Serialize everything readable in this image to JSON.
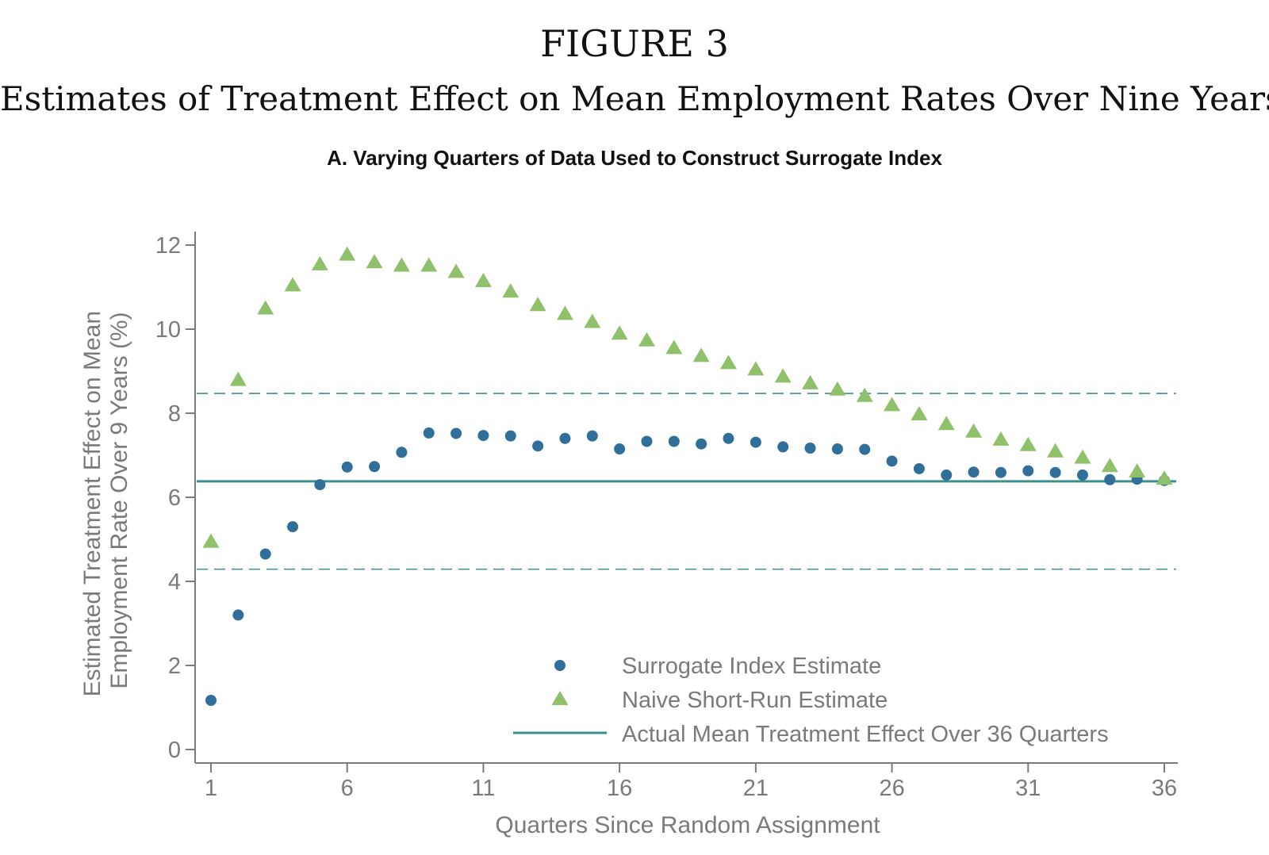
{
  "figure_label": "FIGURE 3",
  "figure_title": "Estimates of Treatment Effect on Mean Employment Rates Over Nine Years",
  "panel_title": "A. Varying Quarters of Data Used to Construct Surrogate Index",
  "colors": {
    "surrogate": "#2f6f9a",
    "naive": "#8fc06a",
    "actual": "#3a8f8f",
    "axis": "#7a7a7a"
  },
  "chart_data": {
    "type": "scatter",
    "xlabel": "Quarters Since Random Assignment",
    "ylabel_lines": [
      "Estimated Treatment Effect on Mean",
      "Employment Rate Over 9 Years (%)"
    ],
    "xlim": [
      1,
      36
    ],
    "ylim": [
      0,
      12
    ],
    "xticks": [
      1,
      6,
      11,
      16,
      21,
      26,
      31,
      36
    ],
    "yticks": [
      0,
      2,
      4,
      6,
      8,
      10,
      12
    ],
    "legend_position": "bottom-right",
    "x": [
      1,
      2,
      3,
      4,
      5,
      6,
      7,
      8,
      9,
      10,
      11,
      12,
      13,
      14,
      15,
      16,
      17,
      18,
      19,
      20,
      21,
      22,
      23,
      24,
      25,
      26,
      27,
      28,
      29,
      30,
      31,
      32,
      33,
      34,
      35,
      36
    ],
    "series": [
      {
        "name": "Surrogate Index Estimate",
        "marker": "circle",
        "values": [
          1.17,
          3.2,
          4.65,
          5.3,
          6.3,
          6.72,
          6.73,
          7.07,
          7.53,
          7.52,
          7.47,
          7.46,
          7.22,
          7.4,
          7.46,
          7.15,
          7.33,
          7.33,
          7.27,
          7.4,
          7.31,
          7.2,
          7.17,
          7.15,
          7.14,
          6.86,
          6.68,
          6.53,
          6.6,
          6.59,
          6.63,
          6.59,
          6.53,
          6.42,
          6.43,
          6.4
        ]
      },
      {
        "name": "Naive Short-Run Estimate",
        "marker": "triangle",
        "values": [
          4.95,
          8.8,
          10.5,
          11.05,
          11.55,
          11.78,
          11.6,
          11.52,
          11.52,
          11.37,
          11.15,
          10.9,
          10.58,
          10.37,
          10.18,
          9.9,
          9.74,
          9.56,
          9.37,
          9.2,
          9.05,
          8.88,
          8.72,
          8.57,
          8.42,
          8.2,
          7.98,
          7.75,
          7.57,
          7.38,
          7.25,
          7.1,
          6.95,
          6.75,
          6.62,
          6.45
        ]
      }
    ],
    "reference_lines": [
      {
        "name": "Actual Mean Treatment Effect Over 36 Quarters",
        "y": 6.38,
        "style": "solid"
      },
      {
        "y": 8.47,
        "style": "dashed"
      },
      {
        "y": 4.29,
        "style": "dashed"
      }
    ]
  }
}
